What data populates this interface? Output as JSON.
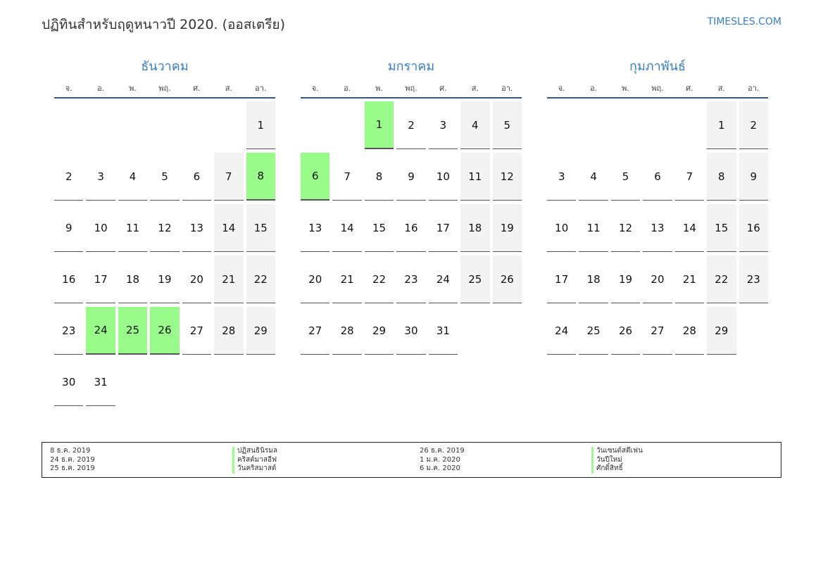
{
  "header": {
    "title": "ปฏิทินสำหรับฤดูหนาวปี 2020. (ออสเตรีย)",
    "site": "TIMESLES.COM"
  },
  "weekdays": [
    "จ.",
    "อ.",
    "พ.",
    "พฤ.",
    "ศ.",
    "ส.",
    "อา."
  ],
  "colors": {
    "accent": "#3a7dbf",
    "holiday": "#98fb8a",
    "weekend": "#f3f3f3"
  },
  "months": [
    {
      "name": "ธันวาคม",
      "weeks": [
        [
          null,
          null,
          null,
          null,
          null,
          null,
          "1"
        ],
        [
          "2",
          "3",
          "4",
          "5",
          "6",
          "7",
          "8"
        ],
        [
          "9",
          "10",
          "11",
          "12",
          "13",
          "14",
          "15"
        ],
        [
          "16",
          "17",
          "18",
          "19",
          "20",
          "21",
          "22"
        ],
        [
          "23",
          "24",
          "25",
          "26",
          "27",
          "28",
          "29"
        ],
        [
          "30",
          "31",
          null,
          null,
          null,
          null,
          null
        ]
      ],
      "holidays": [
        "8",
        "24",
        "25",
        "26"
      ]
    },
    {
      "name": "มกราคม",
      "weeks": [
        [
          null,
          null,
          "1",
          "2",
          "3",
          "4",
          "5"
        ],
        [
          "6",
          "7",
          "8",
          "9",
          "10",
          "11",
          "12"
        ],
        [
          "13",
          "14",
          "15",
          "16",
          "17",
          "18",
          "19"
        ],
        [
          "20",
          "21",
          "22",
          "23",
          "24",
          "25",
          "26"
        ],
        [
          "27",
          "28",
          "29",
          "30",
          "31",
          null,
          null
        ]
      ],
      "holidays": [
        "1",
        "6"
      ]
    },
    {
      "name": "กุมภาพันธ์",
      "weeks": [
        [
          null,
          null,
          null,
          null,
          null,
          "1",
          "2"
        ],
        [
          "3",
          "4",
          "5",
          "6",
          "7",
          "8",
          "9"
        ],
        [
          "10",
          "11",
          "12",
          "13",
          "14",
          "15",
          "16"
        ],
        [
          "17",
          "18",
          "19",
          "20",
          "21",
          "22",
          "23"
        ],
        [
          "24",
          "25",
          "26",
          "27",
          "28",
          "29",
          null
        ]
      ],
      "holidays": []
    }
  ],
  "legend": {
    "col1_dates": [
      "8 ธ.ค. 2019",
      "24 ธ.ค. 2019",
      "25 ธ.ค. 2019"
    ],
    "col1_names": [
      "ปฏิสนธินิรมล",
      "คริสต์มาสอีฟ",
      "วันคริสมาสต์"
    ],
    "col2_dates": [
      "26 ธ.ค. 2019",
      "1 ม.ค. 2020",
      "6 ม.ค. 2020"
    ],
    "col2_names": [
      "วันเซนต์สตีเฟน",
      "วันปีใหม่",
      "ศักดิ์สิทธิ์"
    ]
  }
}
